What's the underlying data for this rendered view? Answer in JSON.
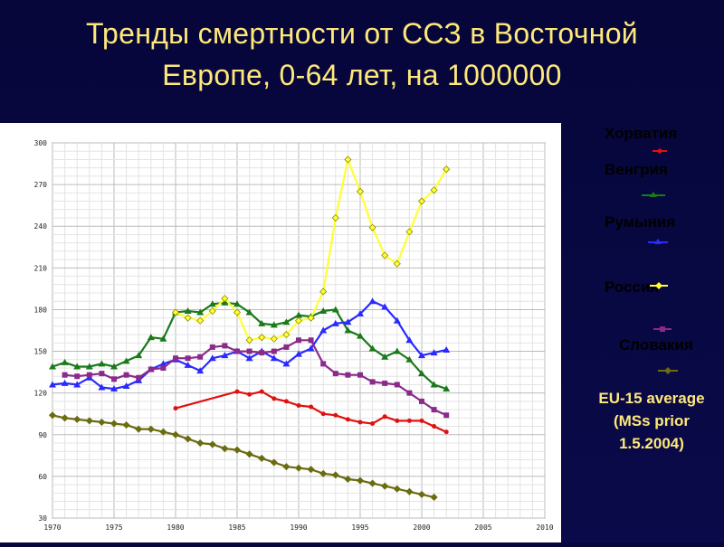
{
  "title_line1": "Тренды смертности от ССЗ в Восточной",
  "title_line2": "Европе, 0-64 лет, на 1000000",
  "legend": [
    {
      "label": "Хорватия",
      "color": "#e01010"
    },
    {
      "label": "Венгрия",
      "color": "#1a7a1a"
    },
    {
      "label": "Румыния",
      "color": "#2a2aff"
    },
    {
      "label": "Россия",
      "color": "#ffff33"
    },
    {
      "label": "Словакия",
      "color": "#8a2a8a"
    }
  ],
  "eu_label": [
    "EU-15 average",
    "(MSs prior",
    "1.5.2004)"
  ],
  "chart_data": {
    "type": "line",
    "xlim": [
      1970,
      2010
    ],
    "ylim": [
      30,
      300
    ],
    "x_ticks": [
      1970,
      1975,
      1980,
      1985,
      1990,
      1995,
      2000,
      2005,
      2010
    ],
    "y_ticks": [
      30,
      60,
      90,
      120,
      150,
      180,
      210,
      240,
      270,
      300
    ],
    "x_tick_labels": [
      "1970",
      "1975",
      "1980",
      "1985",
      "1990",
      "1995",
      "2000",
      "2005",
      "2010"
    ],
    "y_tick_labels": [
      "30",
      "60",
      "90",
      "120",
      "150",
      "180",
      "210",
      "240",
      "270",
      "300"
    ],
    "grid": true,
    "series": [
      {
        "name": "Хорватия",
        "color": "#e01010",
        "marker": "circle",
        "x": [
          1980,
          1985,
          1986,
          1987,
          1988,
          1989,
          1990,
          1991,
          1992,
          1993,
          1994,
          1995,
          1996,
          1997,
          1998,
          1999,
          2000,
          2001,
          2002
        ],
        "y": [
          109,
          121,
          119,
          121,
          116,
          114,
          111,
          110,
          105,
          104,
          101,
          99,
          98,
          103,
          100,
          100,
          100,
          96,
          92
        ]
      },
      {
        "name": "Венгрия",
        "color": "#1a7a1a",
        "marker": "triangle",
        "x": [
          1970,
          1971,
          1972,
          1973,
          1974,
          1975,
          1976,
          1977,
          1978,
          1979,
          1980,
          1981,
          1982,
          1983,
          1984,
          1985,
          1986,
          1987,
          1988,
          1989,
          1990,
          1991,
          1992,
          1993,
          1994,
          1995,
          1996,
          1997,
          1998,
          1999,
          2000,
          2001,
          2002
        ],
        "y": [
          139,
          142,
          139,
          139,
          141,
          139,
          143,
          147,
          160,
          159,
          178,
          179,
          178,
          184,
          185,
          184,
          178,
          170,
          169,
          171,
          176,
          175,
          179,
          180,
          165,
          161,
          152,
          146,
          150,
          144,
          134,
          126,
          123
        ]
      },
      {
        "name": "Румыния",
        "color": "#2a2aff",
        "marker": "triangle",
        "x": [
          1970,
          1971,
          1972,
          1973,
          1974,
          1975,
          1976,
          1977,
          1978,
          1979,
          1980,
          1981,
          1982,
          1983,
          1984,
          1985,
          1986,
          1987,
          1988,
          1989,
          1990,
          1991,
          1992,
          1993,
          1994,
          1995,
          1996,
          1997,
          1998,
          1999,
          2000,
          2001,
          2002
        ],
        "y": [
          126,
          127,
          126,
          131,
          124,
          123,
          125,
          129,
          137,
          141,
          144,
          140,
          136,
          145,
          147,
          150,
          145,
          150,
          145,
          141,
          148,
          152,
          165,
          170,
          171,
          177,
          186,
          182,
          172,
          158,
          147,
          149,
          151
        ]
      },
      {
        "name": "Россия",
        "color": "#ffff33",
        "marker": "diamond",
        "x": [
          1980,
          1981,
          1982,
          1983,
          1984,
          1985,
          1986,
          1987,
          1988,
          1989,
          1990,
          1991,
          1992,
          1993,
          1994,
          1995,
          1996,
          1997,
          1998,
          1999,
          2000,
          2001,
          2002
        ],
        "y": [
          178,
          174,
          172,
          179,
          188,
          178,
          158,
          160,
          159,
          162,
          172,
          174,
          193,
          246,
          288,
          265,
          239,
          219,
          213,
          236,
          258,
          266,
          281
        ]
      },
      {
        "name": "Словакия",
        "color": "#8a2a8a",
        "marker": "square",
        "x": [
          1971,
          1972,
          1973,
          1974,
          1975,
          1976,
          1977,
          1978,
          1979,
          1980,
          1981,
          1982,
          1983,
          1984,
          1985,
          1986,
          1987,
          1988,
          1989,
          1990,
          1991,
          1992,
          1993,
          1994,
          1995,
          1996,
          1997,
          1998,
          1999,
          2000,
          2001,
          2002
        ],
        "y": [
          133,
          132,
          133,
          134,
          130,
          133,
          131,
          137,
          138,
          145,
          145,
          146,
          153,
          154,
          150,
          150,
          149,
          150,
          153,
          158,
          158,
          141,
          134,
          133,
          133,
          128,
          127,
          126,
          120,
          114,
          108,
          104
        ]
      },
      {
        "name": "EU-15 average (MSs prior 1.5.2004)",
        "color": "#6b6b10",
        "marker": "diamond",
        "x": [
          1970,
          1971,
          1972,
          1973,
          1974,
          1975,
          1976,
          1977,
          1978,
          1979,
          1980,
          1981,
          1982,
          1983,
          1984,
          1985,
          1986,
          1987,
          1988,
          1989,
          1990,
          1991,
          1992,
          1993,
          1994,
          1995,
          1996,
          1997,
          1998,
          1999,
          2000,
          2001
        ],
        "y": [
          104,
          102,
          101,
          100,
          99,
          98,
          97,
          94,
          94,
          92,
          90,
          87,
          84,
          83,
          80,
          79,
          76,
          73,
          70,
          67,
          66,
          65,
          62,
          61,
          58,
          57,
          55,
          53,
          51,
          49,
          47,
          45
        ]
      }
    ]
  }
}
